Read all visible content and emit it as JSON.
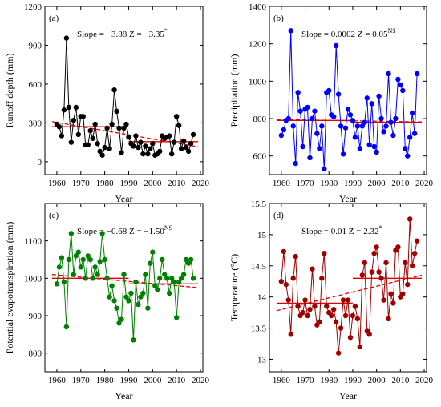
{
  "chart_data": [
    {
      "type": "line",
      "panel_label": "(a)",
      "annotation": {
        "slope": "Slope = −3.88",
        "z": "Z = −3.35",
        "z_sup": "*"
      },
      "ylabel": "Runoff depth (mm)",
      "xlabel": "Year",
      "xlim": [
        1955,
        2021
      ],
      "ylim": [
        -100,
        1200
      ],
      "xticks": [
        1960,
        1970,
        1980,
        1990,
        2000,
        2010,
        2020
      ],
      "yticks": [
        0,
        300,
        600,
        900,
        1200
      ],
      "color": "#000000",
      "x": [
        1960,
        1961,
        1962,
        1963,
        1964,
        1965,
        1966,
        1967,
        1968,
        1969,
        1970,
        1971,
        1972,
        1973,
        1974,
        1975,
        1976,
        1977,
        1978,
        1979,
        1980,
        1981,
        1982,
        1983,
        1984,
        1985,
        1986,
        1987,
        1988,
        1989,
        1990,
        1991,
        1992,
        1993,
        1994,
        1995,
        1996,
        1997,
        1998,
        1999,
        2000,
        2001,
        2002,
        2003,
        2004,
        2005,
        2006,
        2007,
        2008,
        2009,
        2010,
        2011,
        2012,
        2013,
        2014,
        2015,
        2016,
        2017
      ],
      "values": [
        290,
        270,
        200,
        400,
        955,
        420,
        150,
        320,
        420,
        210,
        350,
        350,
        130,
        130,
        240,
        180,
        290,
        140,
        80,
        50,
        110,
        260,
        100,
        290,
        555,
        390,
        260,
        70,
        260,
        290,
        190,
        140,
        120,
        200,
        110,
        150,
        60,
        120,
        60,
        100,
        140,
        50,
        60,
        80,
        200,
        180,
        190,
        200,
        60,
        150,
        350,
        280,
        100,
        160,
        110,
        80,
        140,
        210
      ],
      "trend": {
        "x": [
          1958,
          2019
        ],
        "y": [
          310,
          115
        ]
      },
      "segments": [
        {
          "x": [
            1958,
            1990
          ],
          "y": [
            270,
            270
          ]
        },
        {
          "x": [
            1990,
            2019
          ],
          "y": [
            155,
            155
          ]
        }
      ]
    },
    {
      "type": "line",
      "panel_label": "(b)",
      "annotation": {
        "slope": "Slope = 0.0002",
        "z": "Z = 0.05",
        "z_sup": "NS"
      },
      "ylabel": "Precipitation (mm)",
      "xlabel": "Year",
      "xlim": [
        1955,
        2021
      ],
      "ylim": [
        500,
        1400
      ],
      "xticks": [
        1960,
        1970,
        1980,
        1990,
        2000,
        2010,
        2020
      ],
      "yticks": [
        600,
        800,
        1000,
        1200,
        1400
      ],
      "color": "#0000ff",
      "x": [
        1960,
        1961,
        1962,
        1963,
        1964,
        1965,
        1966,
        1967,
        1968,
        1969,
        1970,
        1971,
        1972,
        1973,
        1974,
        1975,
        1976,
        1977,
        1978,
        1979,
        1980,
        1981,
        1982,
        1983,
        1984,
        1985,
        1986,
        1987,
        1988,
        1989,
        1990,
        1991,
        1992,
        1993,
        1994,
        1995,
        1996,
        1997,
        1998,
        1999,
        2000,
        2001,
        2002,
        2003,
        2004,
        2005,
        2006,
        2007,
        2008,
        2009,
        2010,
        2011,
        2012,
        2013,
        2014,
        2015,
        2016,
        2017
      ],
      "values": [
        710,
        740,
        790,
        800,
        1270,
        760,
        560,
        940,
        840,
        650,
        850,
        860,
        590,
        800,
        840,
        720,
        640,
        760,
        530,
        940,
        950,
        820,
        810,
        1190,
        930,
        760,
        610,
        750,
        850,
        820,
        790,
        700,
        760,
        640,
        760,
        780,
        910,
        660,
        880,
        650,
        620,
        920,
        800,
        730,
        760,
        1040,
        780,
        710,
        800,
        1010,
        980,
        950,
        640,
        600,
        700,
        830,
        720,
        1040
      ],
      "trend": {
        "x": [
          1958,
          2019
        ],
        "y": [
          795,
          782
        ]
      },
      "segments": [
        {
          "x": [
            1958,
            1990
          ],
          "y": [
            790,
            790
          ]
        },
        {
          "x": [
            1990,
            2019
          ],
          "y": [
            780,
            780
          ]
        }
      ]
    },
    {
      "type": "line",
      "panel_label": "(c)",
      "annotation": {
        "slope": "Slope = −0.68",
        "z": "Z = −1.50",
        "z_sup": "NS"
      },
      "ylabel": "Potential evapotranspiration (mm)",
      "xlabel": "Year",
      "xlim": [
        1955,
        2021
      ],
      "ylim": [
        750,
        1200
      ],
      "xticks": [
        1960,
        1970,
        1980,
        1990,
        2000,
        2010,
        2020
      ],
      "yticks": [
        800,
        900,
        1000,
        1100
      ],
      "color": "#008000",
      "x": [
        1960,
        1961,
        1962,
        1963,
        1964,
        1965,
        1966,
        1967,
        1968,
        1969,
        1970,
        1971,
        1972,
        1973,
        1974,
        1975,
        1976,
        1977,
        1978,
        1979,
        1980,
        1981,
        1982,
        1983,
        1984,
        1985,
        1986,
        1987,
        1988,
        1989,
        1990,
        1991,
        1992,
        1993,
        1994,
        1995,
        1996,
        1997,
        1998,
        1999,
        2000,
        2001,
        2002,
        2003,
        2004,
        2005,
        2006,
        2007,
        2008,
        2009,
        2010,
        2011,
        2012,
        2013,
        2014,
        2015,
        2016,
        2017
      ],
      "values": [
        985,
        1030,
        1055,
        990,
        870,
        1050,
        1120,
        1010,
        1060,
        1070,
        1030,
        1050,
        1000,
        1060,
        1050,
        1000,
        1030,
        1010,
        1045,
        1120,
        1050,
        1000,
        950,
        980,
        940,
        920,
        880,
        890,
        1010,
        950,
        940,
        960,
        835,
        990,
        930,
        950,
        960,
        1010,
        920,
        1040,
        1070,
        980,
        970,
        1000,
        1050,
        1010,
        1000,
        960,
        1000,
        990,
        895,
        990,
        1000,
        1010,
        1050,
        1040,
        1050,
        1000
      ],
      "trend": {
        "x": [
          1958,
          2019
        ],
        "y": [
          1010,
          975
        ]
      },
      "segments": [
        {
          "x": [
            1958,
            1990
          ],
          "y": [
            1000,
            1000
          ]
        },
        {
          "x": [
            1990,
            2019
          ],
          "y": [
            985,
            985
          ]
        }
      ]
    },
    {
      "type": "line",
      "panel_label": "(d)",
      "annotation": {
        "slope": "Slope = 0.01",
        "z": "Z = 2.32",
        "z_sup": "*"
      },
      "ylabel": "Temperature (°C)",
      "xlabel": "Year",
      "xlim": [
        1955,
        2021
      ],
      "ylim": [
        12.8,
        15.5
      ],
      "xticks": [
        1960,
        1970,
        1980,
        1990,
        2000,
        2010,
        2020
      ],
      "yticks": [
        13.0,
        13.5,
        14.0,
        14.5,
        15.0,
        15.5
      ],
      "color": "#a00000",
      "x": [
        1960,
        1961,
        1962,
        1963,
        1964,
        1965,
        1966,
        1967,
        1968,
        1969,
        1970,
        1971,
        1972,
        1973,
        1974,
        1975,
        1976,
        1977,
        1978,
        1979,
        1980,
        1981,
        1982,
        1983,
        1984,
        1985,
        1986,
        1987,
        1988,
        1989,
        1990,
        1991,
        1992,
        1993,
        1994,
        1995,
        1996,
        1997,
        1998,
        1999,
        2000,
        2001,
        2002,
        2003,
        2004,
        2005,
        2006,
        2007,
        2008,
        2009,
        2010,
        2011,
        2012,
        2013,
        2014,
        2015,
        2016,
        2017
      ],
      "values": [
        14.25,
        14.73,
        14.2,
        13.95,
        13.4,
        14.3,
        14.65,
        13.85,
        13.7,
        13.75,
        13.95,
        13.7,
        13.8,
        14.45,
        13.85,
        13.55,
        13.6,
        14.3,
        14.7,
        13.85,
        13.75,
        13.7,
        13.8,
        13.6,
        13.1,
        13.5,
        13.95,
        13.7,
        13.95,
        13.35,
        13.7,
        13.85,
        13.65,
        13.2,
        14.35,
        14.55,
        13.45,
        13.4,
        14.4,
        14.7,
        14.8,
        14.4,
        14.3,
        13.95,
        14.55,
        13.65,
        14.05,
        13.9,
        14.75,
        14.8,
        14.0,
        14.05,
        14.55,
        14.2,
        15.25,
        14.5,
        14.7,
        14.9
      ],
      "trend": {
        "x": [
          1958,
          2019
        ],
        "y": [
          13.78,
          14.35
        ]
      },
      "segments": [
        {
          "x": [
            1958,
            1990
          ],
          "y": [
            13.9,
            13.9
          ]
        },
        {
          "x": [
            1990,
            2019
          ],
          "y": [
            14.3,
            14.3
          ]
        }
      ]
    }
  ]
}
